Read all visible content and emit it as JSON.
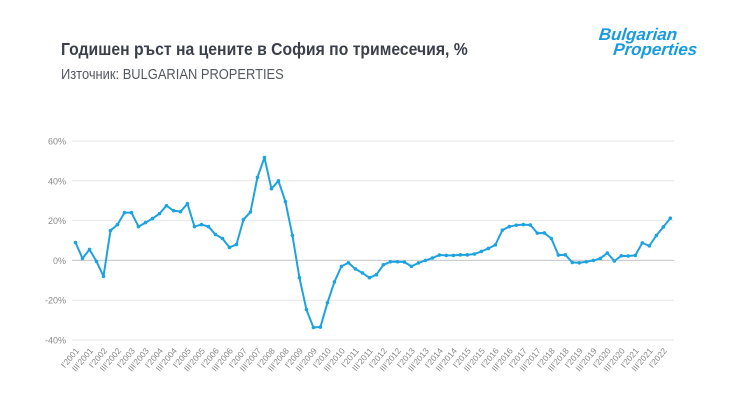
{
  "header": {
    "title": "Годишен ръст на цените в София по тримесечия, %",
    "subtitle": "Източник: BULGARIAN PROPERTIES"
  },
  "logo": {
    "line1": "Bulgarian",
    "line2": "Properties",
    "color": "#1a9be0"
  },
  "colors": {
    "line": "#1ea3e0",
    "grid": "#e6e6e6",
    "zero_line": "#cfcfcf",
    "tick_text": "#8a8a8a"
  },
  "chart_data": {
    "type": "line",
    "title": "Годишен ръст на цените в София по тримесечия, %",
    "subtitle": "Източник: BULGARIAN PROPERTIES",
    "xlabel": "",
    "ylabel": "",
    "ylim": [
      -40,
      60
    ],
    "yticks": [
      60,
      40,
      20,
      0,
      -20,
      -40
    ],
    "ytick_labels": [
      "60%",
      "40%",
      "20%",
      "0%",
      "-20%",
      "-40%"
    ],
    "grid": true,
    "legend": "none",
    "x": [
      "I'2001",
      "II'2001",
      "III'2001",
      "IV'2001",
      "I'2002",
      "II'2002",
      "III'2002",
      "IV'2002",
      "I'2003",
      "II'2003",
      "III'2003",
      "IV'2003",
      "I'2004",
      "II'2004",
      "III'2004",
      "IV'2004",
      "I'2005",
      "II'2005",
      "III'2005",
      "IV'2005",
      "I'2006",
      "II'2006",
      "III'2006",
      "IV'2006",
      "I'2007",
      "II'2007",
      "III'2007",
      "IV'2007",
      "I'2008",
      "II'2008",
      "III'2008",
      "IV'2008",
      "I'2009",
      "II'2009",
      "III'2009",
      "IV'2009",
      "I'2010",
      "II'2010",
      "III'2010",
      "IV'2010",
      "I'2011",
      "II'2011",
      "III'2011",
      "IV'2011",
      "I'2012",
      "II'2012",
      "III'2012",
      "IV'2012",
      "I'2013",
      "II'2013",
      "III'2013",
      "IV'2013",
      "I'2014",
      "II'2014",
      "III'2014",
      "IV'2014",
      "I'2015",
      "II'2015",
      "III'2015",
      "IV'2015",
      "I'2016",
      "II'2016",
      "III'2016",
      "IV'2016",
      "I'2017",
      "II'2017",
      "III'2017",
      "IV'2017",
      "I'2018",
      "II'2018",
      "III'2018",
      "IV'2018",
      "I'2019",
      "II'2019",
      "III'2019",
      "IV'2019",
      "I'2020",
      "II'2020",
      "III'2020",
      "IV'2020",
      "I'2021",
      "II'2021",
      "III'2021",
      "IV'2021",
      "I'2022",
      "II'2022"
    ],
    "xtick_labels": [
      "I'2001",
      "III'2001",
      "I'2002",
      "III'2002",
      "I'2003",
      "III'2003",
      "I'2004",
      "III'2004",
      "I'2005",
      "III'2005",
      "I'2006",
      "III'2006",
      "I'2007",
      "III'2007",
      "I'2008",
      "III'2008",
      "I'2009",
      "III'2009",
      "I'2010",
      "III'2010",
      "I'2011",
      "III'2011",
      "I'2012",
      "III'2012",
      "I'2013",
      "III'2013",
      "I'2014",
      "III'2014",
      "I'2015",
      "III'2015",
      "I'2016",
      "III'2016",
      "I'2017",
      "III'2017",
      "I'2018",
      "III'2018",
      "I'2019",
      "III'2019",
      "I'2020",
      "III'2020",
      "I'2021",
      "III'2021",
      "I'2022"
    ],
    "series": [
      {
        "name": "Годишен ръст на цените, %",
        "values": [
          9,
          1,
          5.5,
          -0.5,
          -8,
          15,
          18,
          24,
          24,
          17,
          19,
          21,
          23.5,
          27.5,
          25,
          24.5,
          28.5,
          17,
          18,
          17,
          13,
          11,
          6.5,
          8,
          20.5,
          24.3,
          41.7,
          51.7,
          36,
          40,
          29.5,
          12.5,
          -8.7,
          -24.7,
          -33.7,
          -33.5,
          -21.3,
          -10.8,
          -3,
          -1.2,
          -4.3,
          -6.3,
          -8.7,
          -7.2,
          -2.2,
          -0.7,
          -0.7,
          -0.8,
          -3,
          -1.3,
          0,
          1.2,
          2.7,
          2.5,
          2.5,
          2.8,
          2.8,
          3.2,
          4.5,
          6,
          7.8,
          15.2,
          17,
          17.7,
          18,
          17.8,
          13.7,
          13.8,
          11,
          2.7,
          2.8,
          -1,
          -1.2,
          -0.7,
          0,
          1,
          3.7,
          -0.3,
          2.3,
          2.2,
          2.5,
          8.8,
          7.3,
          12.5,
          16.8,
          21.2
        ]
      }
    ]
  }
}
